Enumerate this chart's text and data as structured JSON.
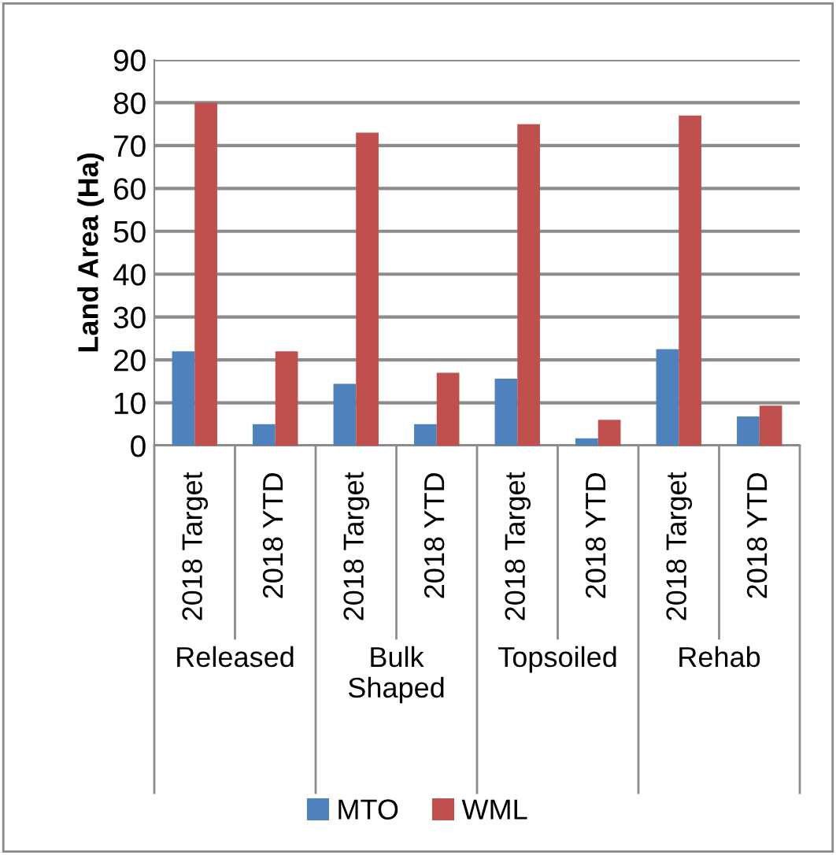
{
  "chart_data": {
    "type": "bar",
    "ylabel": "Land Area (Ha)",
    "categories": [
      "2018 Target",
      "2018 YTD",
      "2018 Target",
      "2018 YTD",
      "2018 Target",
      "2018 YTD",
      "2018 Target",
      "2018 YTD"
    ],
    "series": [
      {
        "name": "MTO",
        "color": "#4f81bd",
        "values": [
          22,
          5,
          14.4,
          5,
          15.6,
          1.7,
          22.5,
          6.8
        ]
      },
      {
        "name": "WML",
        "color": "#c0504d",
        "values": [
          80,
          22,
          73,
          17,
          75,
          6,
          77,
          9.3
        ]
      }
    ],
    "annotations": [
      "Released",
      "Bulk\nShaped",
      "Topsoiled",
      "Rehab"
    ],
    "ylim": [
      0,
      90
    ],
    "yticks": [
      0,
      10,
      20,
      30,
      40,
      50,
      60,
      70,
      80,
      90
    ],
    "grid": "y",
    "legend": "bottom"
  }
}
